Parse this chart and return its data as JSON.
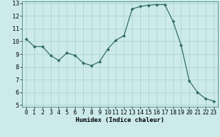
{
  "x": [
    0,
    1,
    2,
    3,
    4,
    5,
    6,
    7,
    8,
    9,
    10,
    11,
    12,
    13,
    14,
    15,
    16,
    17,
    18,
    19,
    20,
    21,
    22,
    23
  ],
  "y": [
    10.2,
    9.6,
    9.6,
    8.9,
    8.5,
    9.1,
    8.9,
    8.3,
    8.1,
    8.4,
    9.4,
    10.1,
    10.45,
    12.55,
    12.75,
    12.85,
    12.9,
    12.9,
    11.6,
    9.7,
    6.9,
    6.0,
    5.5,
    5.3
  ],
  "line_color": "#2e6b5e",
  "marker": "D",
  "marker_size": 2.0,
  "bg_color": "#cceaea",
  "grid_color": "#aad4d4",
  "xlabel": "Humidex (Indice chaleur)",
  "ylim": [
    5,
    13
  ],
  "xlim": [
    -0.5,
    23.5
  ],
  "yticks": [
    5,
    6,
    7,
    8,
    9,
    10,
    11,
    12,
    13
  ],
  "xticks": [
    0,
    1,
    2,
    3,
    4,
    5,
    6,
    7,
    8,
    9,
    10,
    11,
    12,
    13,
    14,
    15,
    16,
    17,
    18,
    19,
    20,
    21,
    22,
    23
  ],
  "xlabel_fontsize": 6.5,
  "tick_fontsize": 6.0,
  "linewidth": 0.9
}
